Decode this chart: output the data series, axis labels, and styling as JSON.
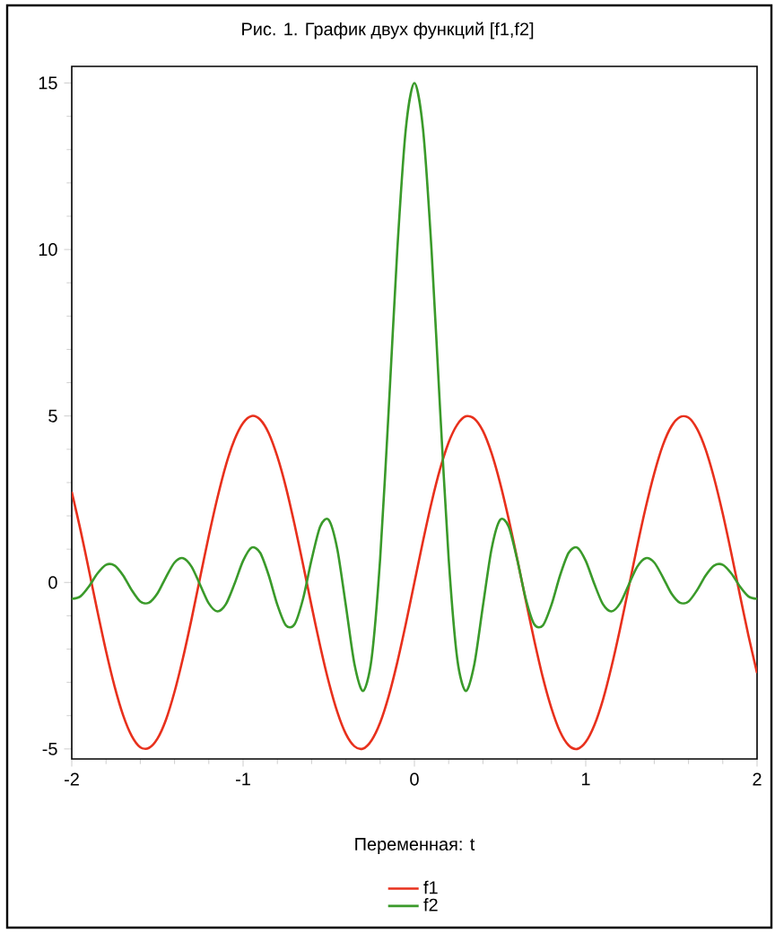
{
  "chart_data": {
    "type": "line",
    "title": "Рис. 1. График двух функций [f1,f2]",
    "xlabel": "Переменная: t",
    "x": [
      -2.0,
      -1.95,
      -1.9,
      -1.85,
      -1.8,
      -1.75,
      -1.7,
      -1.65,
      -1.6,
      -1.55,
      -1.5,
      -1.45,
      -1.4,
      -1.35,
      -1.3,
      -1.25,
      -1.2,
      -1.15,
      -1.1,
      -1.05,
      -1.0,
      -0.95,
      -0.9,
      -0.85,
      -0.8,
      -0.75,
      -0.7,
      -0.65,
      -0.6,
      -0.55,
      -0.5,
      -0.45,
      -0.4,
      -0.35,
      -0.3,
      -0.25,
      -0.2,
      -0.15,
      -0.1,
      -0.05,
      0,
      0.05,
      0.1,
      0.15,
      0.2,
      0.25,
      0.3,
      0.35,
      0.4,
      0.45,
      0.5,
      0.55,
      0.6,
      0.65,
      0.7,
      0.75,
      0.8,
      0.85,
      0.9,
      0.95,
      1.0,
      1.05,
      1.1,
      1.15,
      1.2,
      1.25,
      1.3,
      1.35,
      1.4,
      1.45,
      1.5,
      1.55,
      1.6,
      1.65,
      1.7,
      1.75,
      1.8,
      1.85,
      1.9,
      1.95,
      2.0
    ],
    "series": [
      {
        "name": "f1",
        "color": "#e8301c",
        "values": [
          2.72,
          1.6,
          0.38,
          -0.87,
          -2.06,
          -3.12,
          -3.99,
          -4.61,
          -4.95,
          -4.97,
          -4.69,
          -4.12,
          -3.28,
          -2.25,
          -1.08,
          0.17,
          1.4,
          2.54,
          3.53,
          4.29,
          4.79,
          5.0,
          4.89,
          4.48,
          3.78,
          2.86,
          1.75,
          0.54,
          -0.71,
          -1.91,
          -2.99,
          -3.89,
          -4.55,
          -4.92,
          -4.99,
          -4.74,
          -4.21,
          -3.41,
          -2.4,
          -1.24,
          0,
          1.24,
          2.4,
          3.41,
          4.21,
          4.74,
          4.99,
          4.92,
          4.55,
          3.89,
          2.99,
          1.91,
          0.71,
          -0.54,
          -1.75,
          -2.86,
          -3.78,
          -4.48,
          -4.89,
          -5.0,
          -4.79,
          -4.29,
          -3.53,
          -2.54,
          -1.4,
          -0.17,
          1.08,
          2.25,
          3.28,
          4.12,
          4.69,
          4.97,
          4.95,
          4.61,
          3.99,
          3.12,
          2.06,
          0.87,
          -0.38,
          -1.6,
          -2.72
        ]
      },
      {
        "name": "f2",
        "color": "#3a9a2a",
        "values": [
          -0.49,
          -0.42,
          -0.12,
          0.27,
          0.53,
          0.51,
          0.21,
          -0.23,
          -0.57,
          -0.61,
          -0.33,
          0.16,
          0.6,
          0.73,
          0.47,
          -0.08,
          -0.63,
          -0.87,
          -0.65,
          -0.04,
          0.65,
          1.05,
          0.89,
          0.21,
          -0.67,
          -1.29,
          -1.26,
          -0.49,
          0.69,
          1.68,
          1.88,
          1.0,
          -0.7,
          -2.45,
          -3.26,
          -2.29,
          0.71,
          5.19,
          9.98,
          13.63,
          15,
          13.63,
          9.98,
          5.19,
          0.71,
          -2.29,
          -3.26,
          -2.45,
          -0.7,
          1.0,
          1.88,
          1.68,
          0.69,
          -0.49,
          -1.26,
          -1.29,
          -0.67,
          0.21,
          0.89,
          1.05,
          0.65,
          -0.04,
          -0.65,
          -0.87,
          -0.63,
          -0.08,
          0.47,
          0.73,
          0.6,
          0.16,
          -0.33,
          -0.61,
          -0.57,
          -0.23,
          0.21,
          0.51,
          0.53,
          0.27,
          -0.12,
          -0.42,
          -0.49
        ]
      }
    ],
    "xlim": [
      -2,
      2
    ],
    "ylim": [
      -5.3,
      15.5
    ],
    "xticks": [
      -2,
      -1,
      0,
      1,
      2
    ],
    "yticks": [
      -5,
      0,
      5,
      10,
      15
    ],
    "grid": false,
    "legend": "bottom",
    "marker": "none",
    "line_style": "solid"
  }
}
